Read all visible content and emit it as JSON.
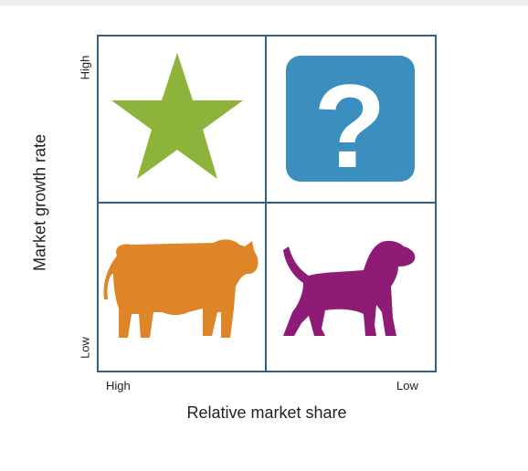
{
  "diagram": {
    "y_axis": {
      "title": "Market growth rate",
      "high_label": "High",
      "low_label": "Low"
    },
    "x_axis": {
      "title": "Relative market share",
      "high_label": "High",
      "low_label": "Low"
    },
    "quadrants": [
      {
        "id": "star",
        "icon": "star-icon",
        "color": "#8DB33A"
      },
      {
        "id": "question-mark",
        "icon": "question-mark-icon",
        "glyph": "?",
        "color": "#3B8FBF"
      },
      {
        "id": "cash-cow",
        "icon": "cow-icon",
        "color": "#DE8528"
      },
      {
        "id": "dog",
        "icon": "dog-icon",
        "color": "#8E1C77"
      }
    ],
    "border_color": "#2E5F86"
  }
}
